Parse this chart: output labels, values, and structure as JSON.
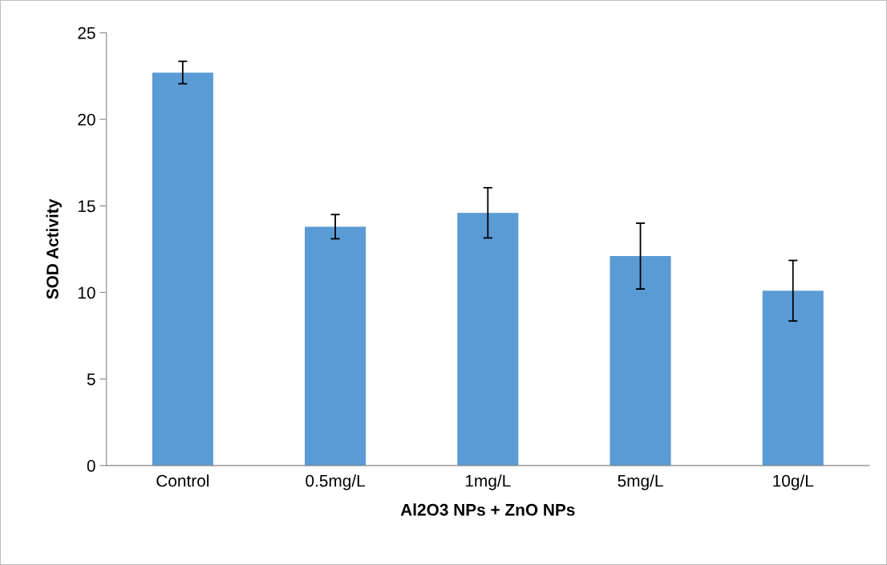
{
  "chart_data": {
    "type": "bar",
    "xlabel": "Al2O3 NPs + ZnO NPs",
    "ylabel": "SOD Activity",
    "categories": [
      "Control",
      "0.5mg/L",
      "1mg/L",
      "5mg/L",
      "10g/L"
    ],
    "values": [
      22.7,
      13.8,
      14.6,
      12.1,
      10.1
    ],
    "errors": [
      0.65,
      0.7,
      1.45,
      1.9,
      1.75
    ],
    "color": "#5b9bd5",
    "ylim": [
      0,
      25
    ],
    "yticks": [
      0,
      5,
      10,
      15,
      20,
      25
    ],
    "grid": false
  }
}
